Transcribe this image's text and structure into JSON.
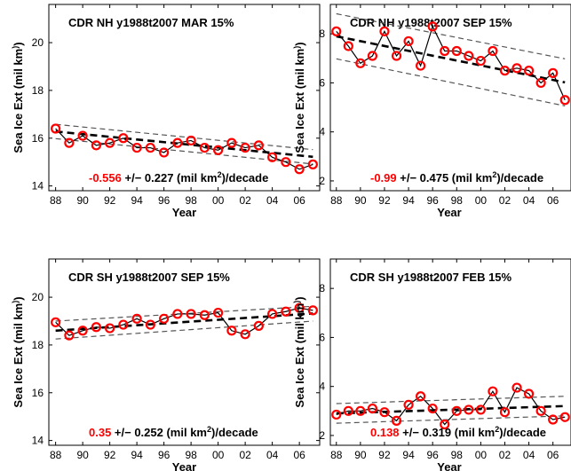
{
  "chart_data": [
    {
      "type": "line",
      "title": "CDR NH y1988t2007 MAR 15%",
      "xlabel": "Year",
      "ylabel": "Sea Ice Ext (mil km2)",
      "xticks": [
        "88",
        "90",
        "92",
        "94",
        "96",
        "98",
        "00",
        "02",
        "04",
        "06"
      ],
      "yticks": [
        "14",
        "16",
        "18",
        "20"
      ],
      "xlim": [
        1987.5,
        2007.5
      ],
      "ylim": [
        13.8,
        21.6
      ],
      "x": [
        1988,
        1989,
        1990,
        1991,
        1992,
        1993,
        1994,
        1995,
        1996,
        1997,
        1998,
        1999,
        2000,
        2001,
        2002,
        2003,
        2004,
        2005,
        2006,
        2007
      ],
      "series": [
        {
          "values": [
            16.4,
            15.8,
            16.1,
            15.7,
            15.8,
            16.0,
            15.6,
            15.6,
            15.4,
            15.8,
            15.9,
            15.6,
            15.5,
            15.8,
            15.6,
            15.7,
            15.2,
            15.0,
            14.7,
            14.9
          ]
        }
      ],
      "trend": {
        "start": 16.28,
        "end": 15.22
      },
      "conf_band": {
        "upper_start": 16.58,
        "upper_end": 15.52,
        "lower_start": 15.98,
        "lower_end": 14.92
      },
      "annotation": {
        "rate": "-0.556",
        "rest": " +/− 0.227 (mil km",
        "sup": "2",
        "tail": ")/decade"
      }
    },
    {
      "type": "line",
      "title": "CDR NH y1988t2007 SEP 15%",
      "xlabel": "Year",
      "ylabel": "Sea Ice Ext (mil km2)",
      "xticks": [
        "88",
        "90",
        "92",
        "94",
        "96",
        "98",
        "00",
        "02",
        "04",
        "06"
      ],
      "yticks": [
        "2",
        "4",
        "6",
        "8"
      ],
      "xlim": [
        1987.5,
        2007.5
      ],
      "ylim": [
        1.6,
        9.2
      ],
      "x": [
        1988,
        1989,
        1990,
        1991,
        1992,
        1993,
        1994,
        1995,
        1996,
        1997,
        1998,
        1999,
        2000,
        2001,
        2002,
        2003,
        2004,
        2005,
        2006,
        2007
      ],
      "series": [
        {
          "values": [
            8.1,
            7.5,
            6.8,
            7.1,
            8.1,
            7.1,
            7.7,
            6.7,
            8.3,
            7.3,
            7.3,
            7.1,
            6.9,
            7.3,
            6.5,
            6.6,
            6.5,
            6.0,
            6.4,
            5.3
          ]
        }
      ],
      "trend": {
        "start": 7.9,
        "end": 6.02
      },
      "conf_band": {
        "upper_start": 8.82,
        "upper_end": 6.98,
        "lower_start": 6.98,
        "lower_end": 5.06
      },
      "annotation": {
        "rate": "-0.99",
        "rest": " +/− 0.475 (mil km",
        "sup": "2",
        "tail": ")/decade"
      }
    },
    {
      "type": "line",
      "title": "CDR SH y1988t2007 SEP 15%",
      "xlabel": "Year",
      "ylabel": "Sea Ice Ext (mil km2)",
      "xticks": [
        "88",
        "90",
        "92",
        "94",
        "96",
        "98",
        "00",
        "02",
        "04",
        "06"
      ],
      "yticks": [
        "14",
        "16",
        "18",
        "20"
      ],
      "xlim": [
        1987.5,
        2007.5
      ],
      "ylim": [
        13.8,
        21.6
      ],
      "x": [
        1988,
        1989,
        1990,
        1991,
        1992,
        1993,
        1994,
        1995,
        1996,
        1997,
        1998,
        1999,
        2000,
        2001,
        2002,
        2003,
        2004,
        2005,
        2006,
        2007
      ],
      "series": [
        {
          "values": [
            18.95,
            18.4,
            18.6,
            18.75,
            18.7,
            18.85,
            19.1,
            18.85,
            19.1,
            19.3,
            19.3,
            19.25,
            19.35,
            18.6,
            18.45,
            18.8,
            19.3,
            19.4,
            19.55,
            19.45
          ]
        }
      ],
      "trend": {
        "start": 18.6,
        "end": 19.32
      },
      "conf_band": {
        "upper_start": 19.0,
        "upper_end": 19.62,
        "lower_start": 18.25,
        "lower_end": 19.0
      },
      "annotation": {
        "rate": "0.35",
        "rest": " +/− 0.252 (mil km",
        "sup": "2",
        "tail": ")/decade"
      }
    },
    {
      "type": "line",
      "title": "CDR SH y1988t2007 FEB 15%",
      "xlabel": "Year",
      "ylabel": "Sea Ice Ext (mil km2)",
      "xticks": [
        "88",
        "90",
        "92",
        "94",
        "96",
        "98",
        "00",
        "02",
        "04",
        "06"
      ],
      "yticks": [
        "2",
        "4",
        "6",
        "8"
      ],
      "xlim": [
        1987.5,
        2007.5
      ],
      "ylim": [
        1.6,
        9.2
      ],
      "x": [
        1988,
        1989,
        1990,
        1991,
        1992,
        1993,
        1994,
        1995,
        1996,
        1997,
        1998,
        1999,
        2000,
        2001,
        2002,
        2003,
        2004,
        2005,
        2006,
        2007
      ],
      "series": [
        {
          "values": [
            2.85,
            3.0,
            3.0,
            3.1,
            2.95,
            2.6,
            3.25,
            3.6,
            3.1,
            2.45,
            3.0,
            3.05,
            3.05,
            3.8,
            2.95,
            3.95,
            3.7,
            3.0,
            2.65,
            2.75
          ]
        }
      ],
      "trend": {
        "start": 2.9,
        "end": 3.2
      },
      "conf_band": {
        "upper_start": 3.3,
        "upper_end": 3.6,
        "lower_start": 2.5,
        "lower_end": 2.8
      },
      "annotation": {
        "rate": "0.138",
        "rest": " +/− 0.319 (mil km",
        "sup": "2",
        "tail": ")/decade"
      }
    }
  ],
  "colors": {
    "marker": "#ff0000",
    "rate_text": "#ff0000",
    "data_line": "#000000",
    "trend_line": "#000000",
    "band_line": "#555555"
  }
}
